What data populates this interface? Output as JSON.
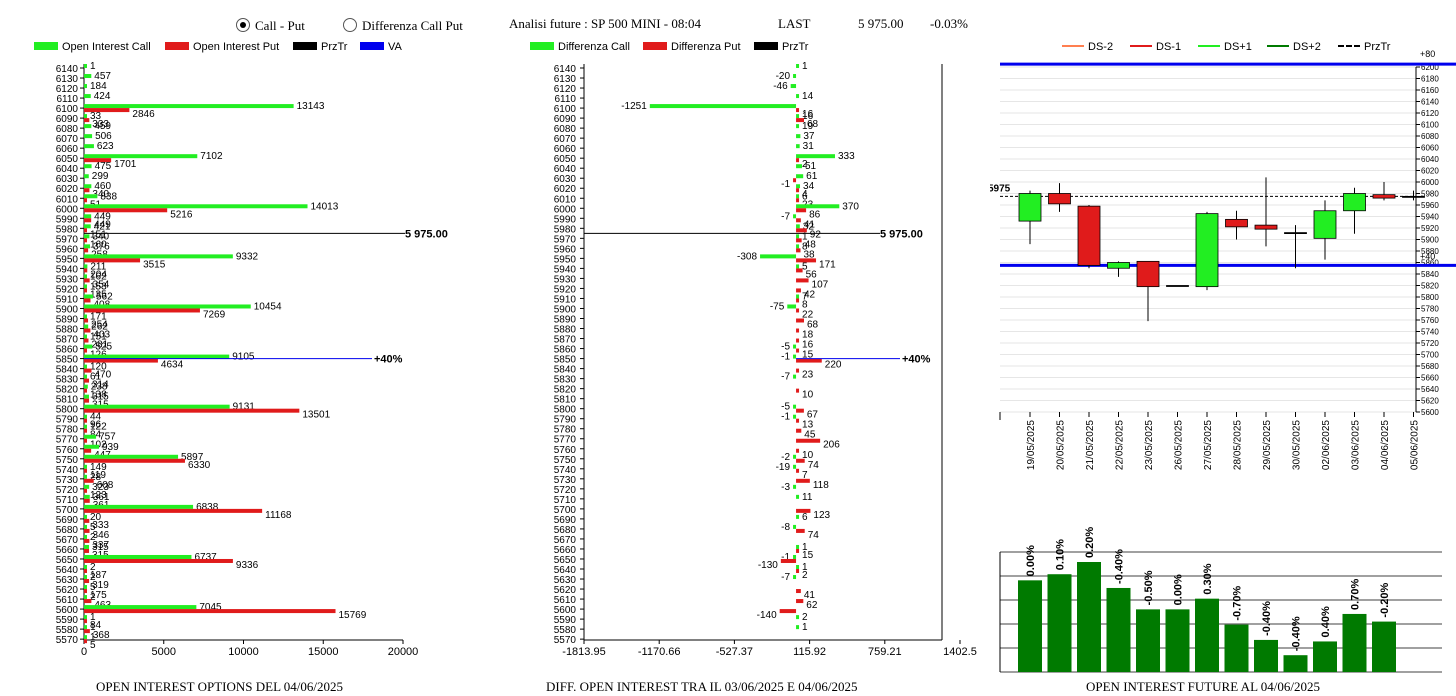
{
  "header": {
    "radio_call_put": "Call - Put",
    "radio_diff": "Differenza Call Put",
    "title": "Analisi future : SP 500 MINI - 08:04",
    "last_label": "LAST",
    "last_value": "5 975.00",
    "change": "-0.03%"
  },
  "colors": {
    "green": "#22ee22",
    "red": "#e01b1b",
    "black": "#000000",
    "blue": "#0000ee",
    "dark_green": "#007a00"
  },
  "chart1": {
    "legend": [
      "Open Interest Call",
      "Open Interest Put",
      "PrzTr",
      "VA"
    ],
    "caption": "OPEN INTEREST OPTIONS DEL 04/06/2025",
    "price_label": "5 975.00",
    "va_label": "+40%"
  },
  "chart2": {
    "legend": [
      "Differenza Call",
      "Differenza Put",
      "PrzTr"
    ],
    "caption": "DIFF. OPEN INTEREST TRA IL 03/06/2025 E 04/06/2025",
    "price_label": "5 975.00",
    "va_label": "+40%"
  },
  "chart3": {
    "legend": [
      "DS-2",
      "DS-1",
      "DS+1",
      "DS+2",
      "PrzTr"
    ],
    "price_tag": "5975",
    "top_band_label": "+80",
    "bottom_band_label": "+40",
    "caption": "OPEN INTEREST FUTURE AL 04/06/2025"
  },
  "chart_data": [
    {
      "type": "bar",
      "orientation": "horizontal",
      "title": "OPEN INTEREST OPTIONS DEL 04/06/2025",
      "strikes": [
        6140,
        6130,
        6120,
        6110,
        6100,
        6090,
        6080,
        6070,
        6060,
        6050,
        6040,
        6030,
        6020,
        6010,
        6000,
        5990,
        5980,
        5970,
        5960,
        5950,
        5940,
        5930,
        5920,
        5910,
        5900,
        5890,
        5880,
        5870,
        5860,
        5850,
        5840,
        5830,
        5820,
        5810,
        5800,
        5790,
        5780,
        5770,
        5760,
        5750,
        5740,
        5730,
        5720,
        5710,
        5700,
        5690,
        5680,
        5670,
        5660,
        5650,
        5640,
        5630,
        5620,
        5610,
        5600,
        5590,
        5580,
        5570
      ],
      "series": [
        {
          "name": "Open Interest Call",
          "values": [
            1,
            457,
            184,
            424,
            13143,
            33,
            459,
            506,
            623,
            7102,
            475,
            299,
            460,
            838,
            14013,
            449,
            421,
            340,
            376,
            9332,
            211,
            162,
            153,
            562,
            10454,
            171,
            262,
            151,
            525,
            9105,
            120,
            61,
            238,
            315,
            9131,
            44,
            122,
            757,
            939,
            5897,
            149,
            28,
            323,
            361,
            6838,
            20,
            5,
            2,
            315,
            6737,
            2,
            2,
            5,
            2,
            7045,
            1,
            1,
            1
          ]
        },
        {
          "name": "Open Interest Put",
          "values": [
            0,
            0,
            0,
            0,
            2846,
            333,
            0,
            0,
            0,
            1701,
            0,
            0,
            340,
            51,
            5216,
            449,
            151,
            160,
            258,
            3515,
            204,
            354,
            135,
            408,
            7269,
            254,
            403,
            281,
            126,
            4634,
            470,
            314,
            138,
            315,
            13501,
            96,
            84,
            102,
            447,
            6330,
            119,
            608,
            123,
            361,
            11168,
            333,
            346,
            337,
            315,
            9336,
            187,
            319,
            175,
            463,
            15769,
            84,
            368,
            5
          ]
        }
      ],
      "xticks": [
        0,
        5000,
        10000,
        15000,
        20000
      ],
      "xlim": [
        0,
        20000
      ],
      "reference_lines": {
        "PrzTr": 5975.0,
        "VA": 5850
      }
    },
    {
      "type": "bar",
      "orientation": "horizontal",
      "title": "DIFF. OPEN INTEREST TRA IL 03/06/2025 E 04/06/2025",
      "strikes": [
        6140,
        6130,
        6120,
        6110,
        6100,
        6090,
        6080,
        6070,
        6060,
        6050,
        6040,
        6030,
        6020,
        6010,
        6000,
        5990,
        5980,
        5970,
        5960,
        5950,
        5940,
        5930,
        5920,
        5910,
        5900,
        5890,
        5880,
        5870,
        5860,
        5850,
        5840,
        5830,
        5820,
        5810,
        5800,
        5790,
        5780,
        5770,
        5760,
        5750,
        5740,
        5730,
        5720,
        5710,
        5700,
        5690,
        5680,
        5670,
        5660,
        5650,
        5640,
        5630,
        5620,
        5610,
        5600,
        5590,
        5580,
        5570
      ],
      "series": [
        {
          "name": "Differenza Call",
          "values": [
            1,
            -20,
            -46,
            14,
            -1251,
            16,
            19,
            37,
            31,
            333,
            51,
            61,
            34,
            6,
            370,
            -7,
            32,
            1,
            8,
            -308,
            5,
            0,
            0,
            7,
            -75,
            0,
            0,
            0,
            -5,
            -1,
            0,
            -7,
            0,
            0,
            -5,
            -1,
            0,
            0,
            0,
            -2,
            -19,
            0,
            -3,
            11,
            0,
            6,
            -8,
            0,
            1,
            -1,
            1,
            -7,
            0,
            0,
            0,
            2,
            1,
            0
          ]
        },
        {
          "name": "Differenza Put",
          "values": [
            0,
            0,
            0,
            0,
            16,
            68,
            0,
            0,
            0,
            2,
            0,
            -1,
            4,
            23,
            86,
            41,
            92,
            48,
            38,
            171,
            56,
            107,
            42,
            8,
            22,
            68,
            18,
            16,
            15,
            220,
            23,
            0,
            10,
            0,
            67,
            13,
            45,
            206,
            10,
            74,
            7,
            118,
            0,
            0,
            123,
            0,
            74,
            0,
            15,
            -130,
            2,
            0,
            41,
            62,
            -140,
            0,
            0,
            0
          ]
        }
      ],
      "xticks": [
        -1813.95,
        -1170.66,
        -527.37,
        115.92,
        759.21,
        1402.5
      ],
      "xlim": [
        -1813.95,
        1402.5
      ],
      "reference_lines": {
        "PrzTr": 5975.0,
        "VA": 5850
      }
    },
    {
      "type": "candlestick",
      "legend": [
        "DS-2",
        "DS-1",
        "DS+1",
        "DS+2",
        "PrzTr"
      ],
      "dates": [
        "19/05/2025",
        "20/05/2025",
        "21/05/2025",
        "22/05/2025",
        "23/05/2025",
        "26/05/2025",
        "27/05/2025",
        "28/05/2025",
        "29/05/2025",
        "30/05/2025",
        "02/06/2025",
        "03/06/2025",
        "04/06/2025",
        "05/06/2025"
      ],
      "open": [
        5932,
        5980,
        5958,
        5850,
        5862,
        5820,
        5818,
        5935,
        5925,
        5912,
        5902,
        5950,
        5978,
        5975
      ],
      "close": [
        5980,
        5962,
        5855,
        5860,
        5818,
        5820,
        5945,
        5922,
        5918,
        5912,
        5950,
        5980,
        5972,
        5975
      ],
      "high": [
        5985,
        5998,
        5960,
        5862,
        5862,
        5820,
        5948,
        5950,
        6008,
        5925,
        5968,
        5990,
        6000,
        5985
      ],
      "low": [
        5892,
        5948,
        5850,
        5835,
        5758,
        5820,
        5812,
        5900,
        5888,
        5850,
        5865,
        5910,
        5968,
        5968
      ],
      "yticks": [
        6200,
        6180,
        6160,
        6140,
        6120,
        6100,
        6080,
        6060,
        6040,
        6020,
        6000,
        5980,
        5960,
        5940,
        5920,
        5900,
        5880,
        5860,
        5840,
        5820,
        5800,
        5780,
        5760,
        5740,
        5720,
        5700,
        5680,
        5660,
        5640,
        5620,
        5600
      ],
      "ylim": [
        5600,
        6200
      ],
      "bands": {
        "+80": 6205,
        "+40": 5855
      },
      "PrzTr": 5975
    },
    {
      "type": "bar",
      "title": "OPEN INTEREST FUTURE AL 04/06/2025",
      "labels": [
        "0.00%",
        "0.10%",
        "0.20%",
        "-0.40%",
        "-0.50%",
        "0.00%",
        "0.30%",
        "-0.70%",
        "-0.40%",
        "-0.40%",
        "0.40%",
        "0.70%",
        "-0.20%"
      ],
      "values": [
        60,
        64,
        72,
        55,
        41,
        41,
        48,
        31,
        21,
        11,
        20,
        38,
        33
      ]
    }
  ]
}
